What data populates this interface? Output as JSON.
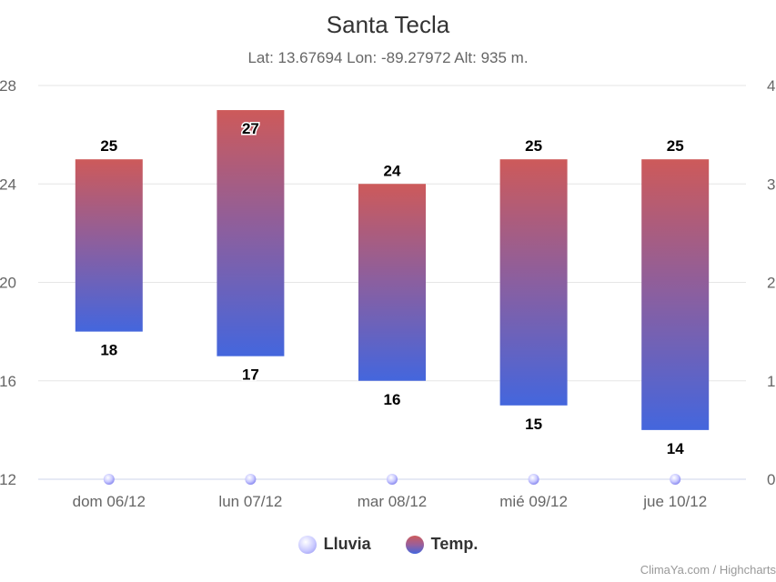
{
  "header": {
    "title": "Santa Tecla",
    "subtitle": "Lat: 13.67694 Lon: -89.27972 Alt: 935 m."
  },
  "legend": {
    "lluvia": "Lluvia",
    "temp": "Temp."
  },
  "credits": "ClimaYa.com / Highcharts",
  "colors": {
    "temp_top": "#cd5a5a",
    "temp_bottom": "#4466dd",
    "rain_dot": "#c9c9ff",
    "grid": "#e6e6e6",
    "axis_text": "#666666"
  },
  "chart_data": {
    "type": "bar",
    "title": "Santa Tecla",
    "subtitle": "Lat: 13.67694 Lon: -89.27972 Alt: 935 m.",
    "categories": [
      "dom 06/12",
      "lun 07/12",
      "mar 08/12",
      "mié 09/12",
      "jue 10/12"
    ],
    "series": [
      {
        "name": "Temp.",
        "kind": "range",
        "low": [
          18,
          17,
          16,
          15,
          14
        ],
        "high": [
          25,
          27,
          24,
          25,
          25
        ]
      },
      {
        "name": "Lluvia",
        "kind": "scatter",
        "values": [
          0,
          0,
          0,
          0,
          0
        ]
      }
    ],
    "y_left": {
      "ticks": [
        "12",
        "16",
        "20",
        "24",
        "28"
      ],
      "range": [
        12,
        28
      ]
    },
    "y_right": {
      "ticks": [
        "0",
        "1",
        "2",
        "3",
        "4"
      ],
      "range": [
        0,
        4
      ]
    },
    "grid": true,
    "legend_position": "bottom-center"
  }
}
